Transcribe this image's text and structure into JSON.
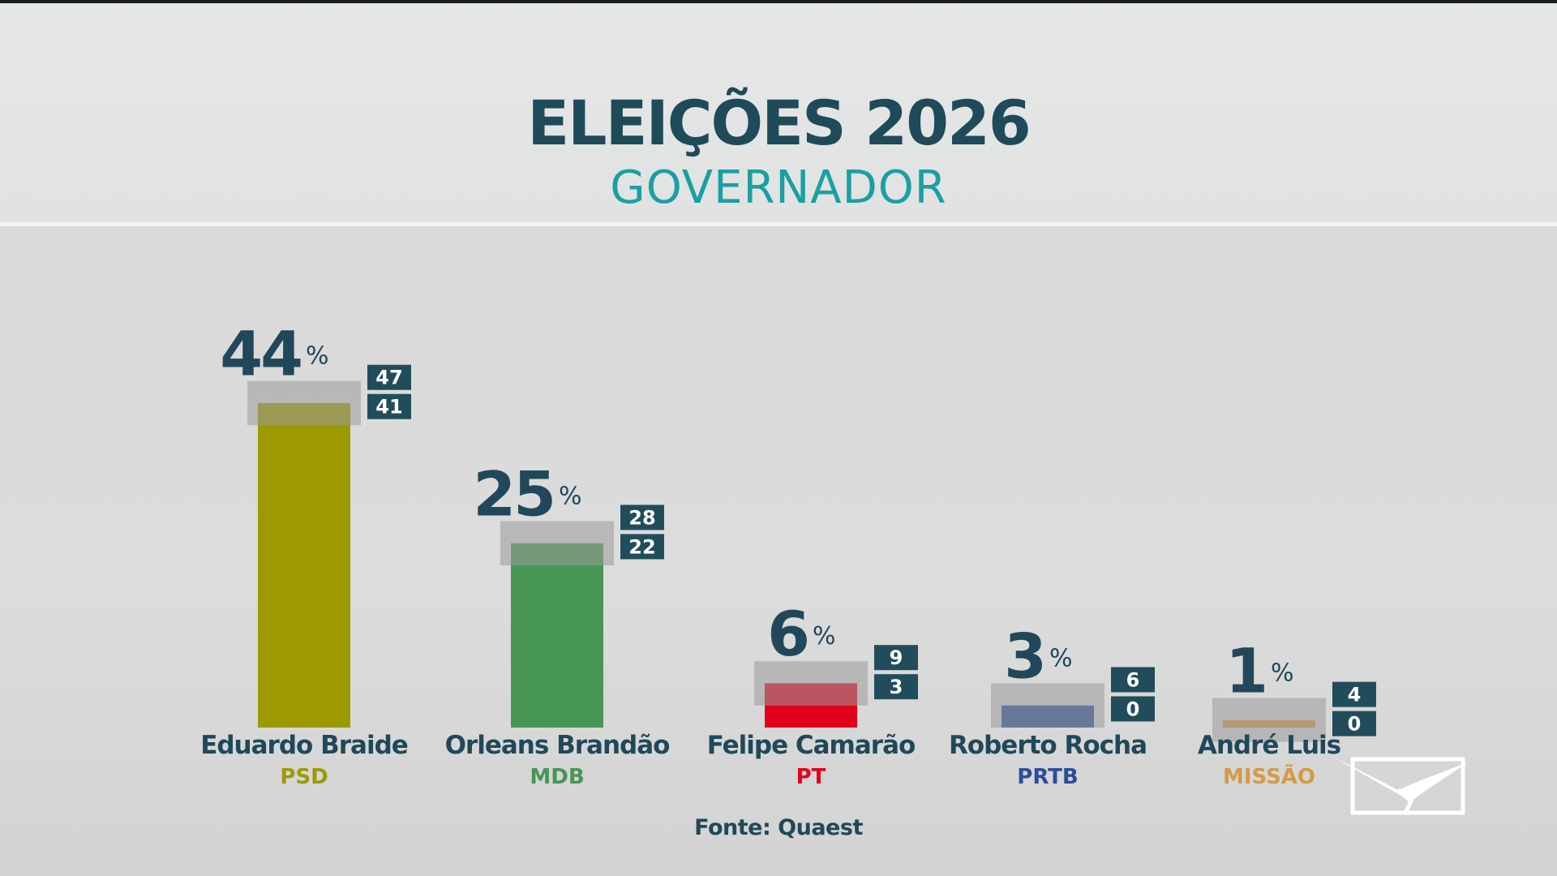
{
  "header": {
    "title": "ELEIÇÕES 2026",
    "subtitle": "GOVERNADOR"
  },
  "source": "Fonte: Quaest",
  "chart_data": {
    "type": "bar",
    "title": "ELEIÇÕES 2026",
    "subtitle": "GOVERNADOR",
    "categories": [
      "Eduardo Braide",
      "Orleans Brandão",
      "Felipe Camarão",
      "Roberto Rocha",
      "André Luis"
    ],
    "parties": [
      "PSD",
      "MDB",
      "PT",
      "PRTB",
      "MISSÃO"
    ],
    "values": [
      44,
      25,
      6,
      3,
      1
    ],
    "upper": [
      47,
      28,
      9,
      6,
      4
    ],
    "lower": [
      41,
      22,
      3,
      0,
      0
    ],
    "unit": "%",
    "colors": [
      "#9c9a00",
      "#479655",
      "#e3001b",
      "#2b4e9b",
      "#d49a46"
    ],
    "label_color": "#21485a",
    "ylim": [
      0,
      47
    ],
    "grid": false,
    "legend": "none"
  }
}
